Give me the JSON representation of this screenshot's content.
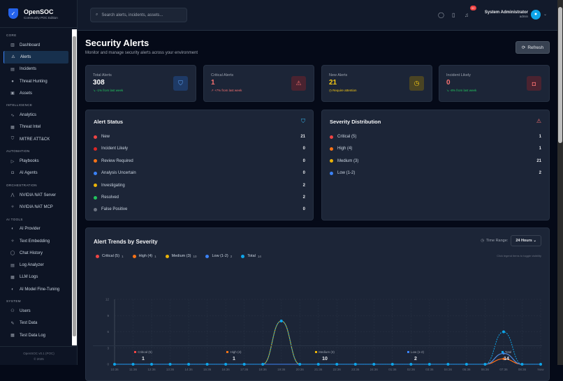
{
  "brand": {
    "title": "OpenSOC",
    "subtitle": "Community POC Edition",
    "footer_version": "OpenSOC v0.1 (POC)",
    "footer_year": "© 2025"
  },
  "sidebar": {
    "sections": [
      {
        "label": "CORE",
        "items": [
          {
            "label": "Dashboard",
            "icon": "chart-icon"
          },
          {
            "label": "Alerts",
            "icon": "alert-triangle-icon",
            "active": true
          },
          {
            "label": "Incidents",
            "icon": "file-icon"
          },
          {
            "label": "Threat Hunting",
            "icon": "target-icon"
          },
          {
            "label": "Assets",
            "icon": "server-icon"
          }
        ]
      },
      {
        "label": "INTELLIGENCE",
        "items": [
          {
            "label": "Analytics",
            "icon": "activity-icon"
          },
          {
            "label": "Threat Intel",
            "icon": "database-icon"
          },
          {
            "label": "MITRE ATT&CK",
            "icon": "shield-icon"
          }
        ]
      },
      {
        "label": "AUTOMATION",
        "items": [
          {
            "label": "Playbooks",
            "icon": "play-icon"
          },
          {
            "label": "AI Agents",
            "icon": "bot-icon"
          }
        ]
      },
      {
        "label": "ORCHESTRATION",
        "items": [
          {
            "label": "NVIDIA NAT Server",
            "icon": "network-icon"
          },
          {
            "label": "NVIDIA NAT MCP",
            "icon": "sparkle-icon"
          }
        ]
      },
      {
        "label": "AI TOOLS",
        "items": [
          {
            "label": "AI Provider",
            "icon": "brain-icon"
          },
          {
            "label": "Text Embedding",
            "icon": "sparkle-icon"
          },
          {
            "label": "Chat History",
            "icon": "message-icon"
          },
          {
            "label": "Log Analyzer",
            "icon": "file-icon"
          },
          {
            "label": "LLM Logs",
            "icon": "database-icon"
          },
          {
            "label": "AI Model Fine-Tuning",
            "icon": "brain-icon"
          }
        ]
      },
      {
        "label": "SYSTEM",
        "items": [
          {
            "label": "Users",
            "icon": "users-icon"
          },
          {
            "label": "Test Data",
            "icon": "flask-icon"
          },
          {
            "label": "Test Data Log",
            "icon": "database-icon"
          }
        ]
      }
    ]
  },
  "header": {
    "search_placeholder": "Search alerts, incidents, assets...",
    "notification_count": "9+",
    "user_name": "System Administrator",
    "user_role": "admin"
  },
  "page": {
    "title": "Security Alerts",
    "subtitle": "Monitor and manage security alerts across your environment",
    "refresh_label": "Refresh"
  },
  "stats": [
    {
      "label": "Total Alerts",
      "value": "308",
      "sub": "↘ -1% from last week",
      "value_color": "#ffffff",
      "sub_color": "#22c55e",
      "icon": "shield-icon",
      "icon_bg": "#1e3a66",
      "icon_color": "#60a5fa"
    },
    {
      "label": "Critical Alerts",
      "value": "1",
      "sub": "↗ +7% from last week",
      "value_color": "#f87171",
      "sub_color": "#f87171",
      "icon": "alert-triangle-icon",
      "icon_bg": "#4a2330",
      "icon_color": "#f87171"
    },
    {
      "label": "New Alerts",
      "value": "21",
      "sub": "◷ Require attention",
      "value_color": "#facc15",
      "sub_color": "#facc15",
      "icon": "clock-icon",
      "icon_bg": "#4a4423",
      "icon_color": "#facc15"
    },
    {
      "label": "Incident Likely",
      "value": "0",
      "sub": "↘ -8% from last week",
      "value_color": "#f87171",
      "sub_color": "#22c55e",
      "icon": "bot-icon",
      "icon_bg": "#4a2330",
      "icon_color": "#f87171"
    }
  ],
  "alert_status": {
    "title": "Alert Status",
    "rows": [
      {
        "label": "New",
        "value": "21",
        "color": "#ef4444"
      },
      {
        "label": "Incident Likely",
        "value": "0",
        "color": "#dc2626"
      },
      {
        "label": "Review Required",
        "value": "0",
        "color": "#f97316"
      },
      {
        "label": "Analysis Uncertain",
        "value": "0",
        "color": "#3b82f6"
      },
      {
        "label": "Investigating",
        "value": "2",
        "color": "#eab308"
      },
      {
        "label": "Resolved",
        "value": "2",
        "color": "#22c55e"
      },
      {
        "label": "False Positive",
        "value": "0",
        "color": "#6b7280"
      }
    ]
  },
  "severity": {
    "title": "Severity Distribution",
    "rows": [
      {
        "label": "Critical (5)",
        "value": "1",
        "color": "#ef4444"
      },
      {
        "label": "High (4)",
        "value": "1",
        "color": "#f97316"
      },
      {
        "label": "Medium (3)",
        "value": "21",
        "color": "#eab308"
      },
      {
        "label": "Low (1-2)",
        "value": "2",
        "color": "#3b82f6"
      }
    ]
  },
  "trends": {
    "title": "Alert Trends by Severity",
    "time_range_label": "Time Range:",
    "time_range_value": "24 Hours",
    "hint": "Click legend items to toggle visibility"
  },
  "chart_data": {
    "type": "line",
    "title": "Alert Trends by Severity",
    "ylim": [
      0,
      12
    ],
    "yticks": [
      "0",
      "3",
      "6",
      "9",
      "12"
    ],
    "grid": true,
    "legend": "top-left",
    "categories": [
      "10:36",
      "11:36",
      "12:36",
      "13:36",
      "14:36",
      "15:36",
      "16:36",
      "17:36",
      "18:36",
      "19:36",
      "20:36",
      "21:36",
      "22:36",
      "23:36",
      "24:36",
      "01:36",
      "02:36",
      "03:36",
      "04:36",
      "05:36",
      "06:36",
      "07:36",
      "08:36",
      "Now"
    ],
    "series": [
      {
        "name": "Critical (5)",
        "total": "1",
        "color": "#ef4444",
        "values": [
          0,
          0,
          0,
          0,
          0,
          0,
          0,
          0,
          0,
          0,
          0,
          0,
          0,
          0,
          0,
          0,
          0,
          0,
          0,
          0,
          0,
          1,
          0,
          0
        ]
      },
      {
        "name": "High (4)",
        "total": "1",
        "color": "#f97316",
        "values": [
          0,
          0,
          0,
          0,
          0,
          0,
          0,
          0,
          0,
          0,
          0,
          0,
          0,
          0,
          0,
          0,
          0,
          0,
          0,
          0,
          0,
          1,
          0,
          0
        ]
      },
      {
        "name": "Medium (3)",
        "total": "10",
        "color": "#eab308",
        "values": [
          0,
          0,
          0,
          0,
          0,
          0,
          0,
          0,
          0,
          8,
          0,
          0,
          0,
          0,
          0,
          0,
          0,
          0,
          0,
          0,
          0,
          2,
          0,
          0
        ]
      },
      {
        "name": "Low (1-2)",
        "total": "2",
        "color": "#3b82f6",
        "values": [
          0,
          0,
          0,
          0,
          0,
          0,
          0,
          0,
          0,
          0,
          0,
          0,
          0,
          0,
          0,
          0,
          0,
          0,
          0,
          0,
          0,
          2,
          0,
          0
        ]
      },
      {
        "name": "Total",
        "total": "14",
        "color": "#0ea5e9",
        "dashed": true,
        "values": [
          0,
          0,
          0,
          0,
          0,
          0,
          0,
          0,
          0,
          8,
          0,
          0,
          0,
          0,
          0,
          0,
          0,
          0,
          0,
          0,
          0,
          6,
          0,
          0
        ]
      }
    ]
  }
}
